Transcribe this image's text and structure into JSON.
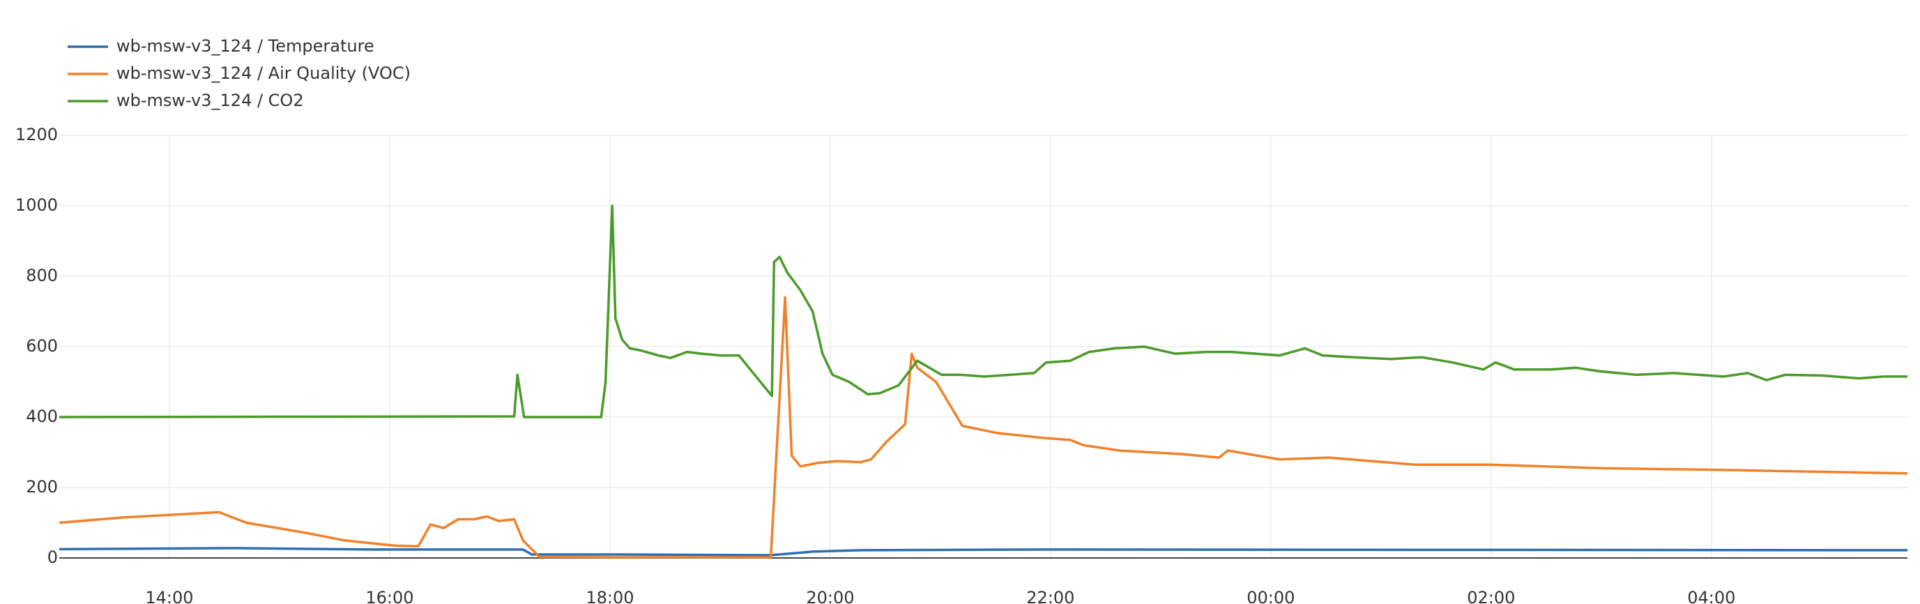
{
  "chart_data": {
    "type": "line",
    "series": [
      {
        "name": "wb-msw-v3_124 / Temperature",
        "color": "#2f6db0",
        "x": [
          13.0,
          14.59,
          15.82,
          17.21,
          17.29,
          18.05,
          19.46,
          19.84,
          20.28,
          21.96,
          29.78
        ],
        "values": [
          25,
          28,
          24,
          24,
          10,
          10,
          8,
          18,
          22,
          24,
          22
        ]
      },
      {
        "name": "wb-msw-v3_124 / Air Quality (VOC)",
        "color": "#f0812a",
        "x": [
          13.0,
          13.58,
          14.45,
          14.7,
          15.26,
          15.59,
          16.04,
          16.26,
          16.37,
          16.49,
          16.62,
          16.77,
          16.88,
          16.99,
          17.13,
          17.21,
          17.36,
          18.05,
          19.46,
          19.59,
          19.65,
          19.73,
          19.89,
          20.06,
          20.28,
          20.37,
          20.51,
          20.68,
          20.74,
          20.79,
          20.96,
          21.2,
          21.51,
          21.96,
          22.18,
          22.3,
          22.63,
          23.19,
          23.53,
          23.61,
          24.08,
          24.53,
          25.31,
          25.98,
          26.99,
          28.11,
          29.78
        ],
        "values": [
          100,
          115,
          130,
          100,
          70,
          50,
          35,
          33,
          95,
          85,
          110,
          110,
          118,
          105,
          110,
          50,
          3,
          2,
          2,
          740,
          290,
          260,
          270,
          275,
          272,
          280,
          330,
          380,
          580,
          540,
          500,
          375,
          355,
          340,
          335,
          320,
          305,
          295,
          285,
          305,
          280,
          285,
          265,
          265,
          255,
          250,
          240
        ]
      },
      {
        "name": "wb-msw-v3_124 / CO2",
        "color": "#4c9a2a",
        "x": [
          13.0,
          17.13,
          17.16,
          17.22,
          17.92,
          17.96,
          18.02,
          18.05,
          18.11,
          18.18,
          18.27,
          18.44,
          18.55,
          18.7,
          18.83,
          19.0,
          19.17,
          19.47,
          19.49,
          19.54,
          19.61,
          19.73,
          19.84,
          19.93,
          20.02,
          20.17,
          20.34,
          20.45,
          20.62,
          20.79,
          21.01,
          21.18,
          21.4,
          21.63,
          21.85,
          21.96,
          22.18,
          22.35,
          22.58,
          22.85,
          23.13,
          23.41,
          23.64,
          23.86,
          24.08,
          24.31,
          24.47,
          24.75,
          25.09,
          25.37,
          25.65,
          25.93,
          26.04,
          26.21,
          26.54,
          26.77,
          26.99,
          27.32,
          27.66,
          28.11,
          28.33,
          28.5,
          28.67,
          29.0,
          29.34,
          29.56,
          29.78
        ],
        "values": [
          400,
          402,
          520,
          400,
          400,
          500,
          1000,
          680,
          620,
          595,
          590,
          575,
          568,
          585,
          580,
          575,
          575,
          460,
          840,
          855,
          810,
          760,
          700,
          580,
          520,
          500,
          465,
          468,
          490,
          560,
          520,
          520,
          515,
          520,
          525,
          555,
          560,
          585,
          595,
          600,
          580,
          585,
          585,
          580,
          575,
          595,
          575,
          570,
          565,
          570,
          555,
          535,
          555,
          535,
          535,
          540,
          530,
          520,
          525,
          515,
          525,
          505,
          520,
          518,
          510,
          515,
          515
        ]
      }
    ],
    "xlim": [
      13,
      29.78
    ],
    "xticks": [
      {
        "value": 14,
        "label": "14:00"
      },
      {
        "value": 16,
        "label": "16:00"
      },
      {
        "value": 18,
        "label": "18:00"
      },
      {
        "value": 20,
        "label": "20:00"
      },
      {
        "value": 22,
        "label": "22:00"
      },
      {
        "value": 24,
        "label": "00:00"
      },
      {
        "value": 26,
        "label": "02:00"
      },
      {
        "value": 28,
        "label": "04:00"
      }
    ],
    "ylim": [
      0,
      1200
    ],
    "yticks": [
      0,
      200,
      400,
      600,
      800,
      1000,
      1200
    ],
    "grid": true,
    "legend": "top-left"
  }
}
